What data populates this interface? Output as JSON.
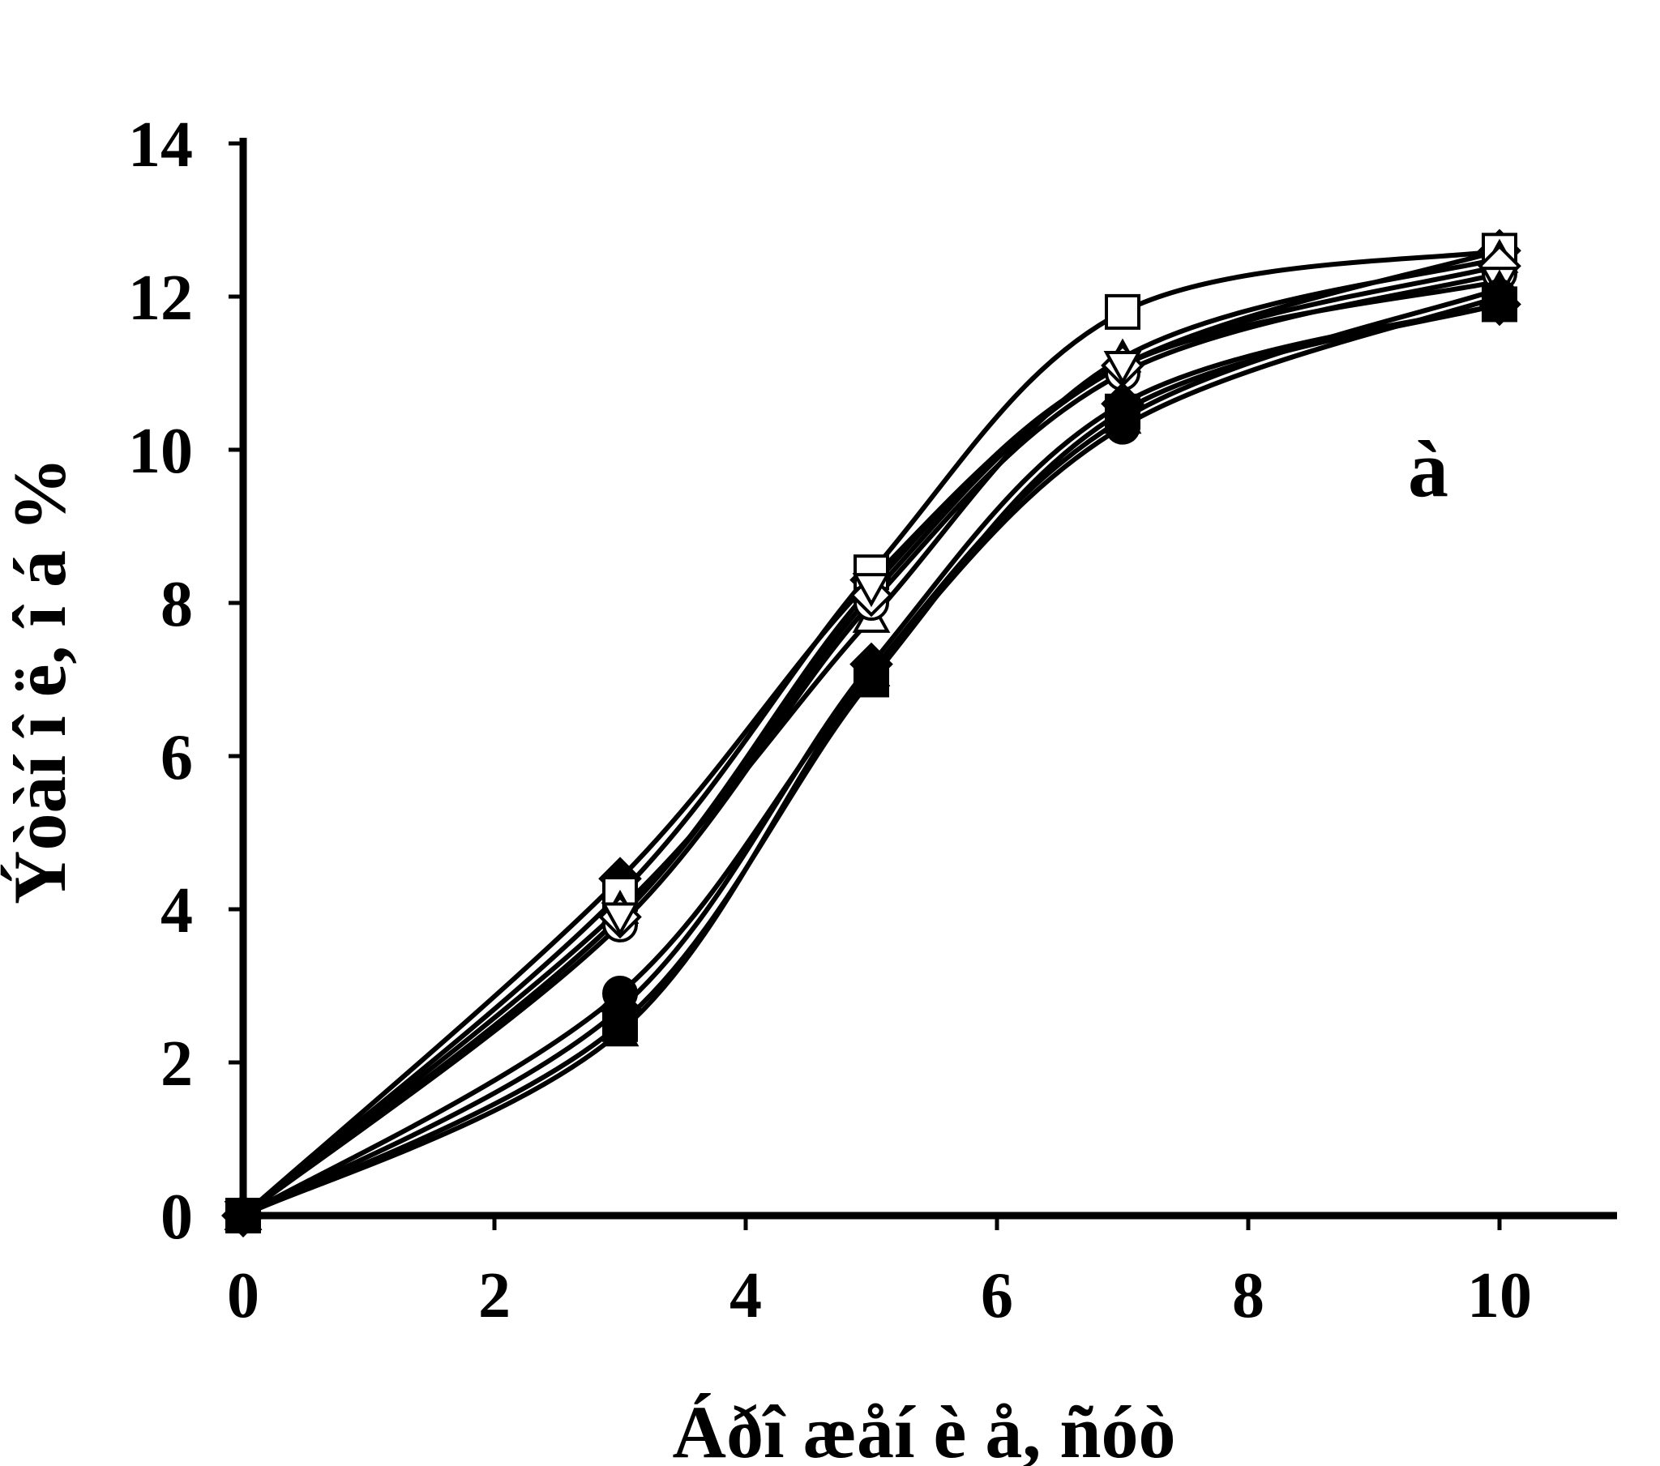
{
  "chart_data": {
    "type": "line",
    "title": "",
    "panel_label": "à",
    "xlabel": "Áðî æåí è å, ñóò",
    "ylabel": "Ýòàí î ë, î á %",
    "xlim": [
      0,
      11
    ],
    "ylim": [
      0,
      14
    ],
    "xticks": [
      0,
      2,
      4,
      6,
      8,
      10
    ],
    "yticks": [
      0,
      2,
      4,
      6,
      8,
      10,
      12,
      14
    ],
    "grid": false,
    "legend": "none",
    "x": [
      0,
      3,
      5,
      7,
      10
    ],
    "series": [
      {
        "marker": "filled-diamond",
        "values": [
          0,
          4.4,
          8.3,
          11.1,
          12.6
        ]
      },
      {
        "marker": "open-square",
        "values": [
          0,
          4.2,
          8.4,
          11.8,
          12.6
        ]
      },
      {
        "marker": "open-triangle",
        "values": [
          0,
          4.0,
          7.8,
          11.2,
          12.5
        ]
      },
      {
        "marker": "open-circle",
        "values": [
          0,
          3.8,
          8.0,
          11.0,
          12.3
        ]
      },
      {
        "marker": "open-diamond",
        "values": [
          0,
          3.9,
          8.1,
          11.1,
          12.4
        ]
      },
      {
        "marker": "open-inverted-triangle",
        "values": [
          0,
          3.9,
          8.2,
          11.1,
          12.2
        ]
      },
      {
        "marker": "filled-circle",
        "values": [
          0,
          2.9,
          7.1,
          10.3,
          12.0
        ]
      },
      {
        "marker": "filled-square",
        "values": [
          0,
          2.5,
          7.0,
          10.5,
          11.9
        ]
      },
      {
        "marker": "filled-triangle",
        "values": [
          0,
          2.4,
          7.1,
          10.4,
          12.1
        ]
      },
      {
        "marker": "filled-diamond",
        "values": [
          0,
          2.7,
          7.2,
          10.6,
          11.9
        ]
      }
    ]
  }
}
